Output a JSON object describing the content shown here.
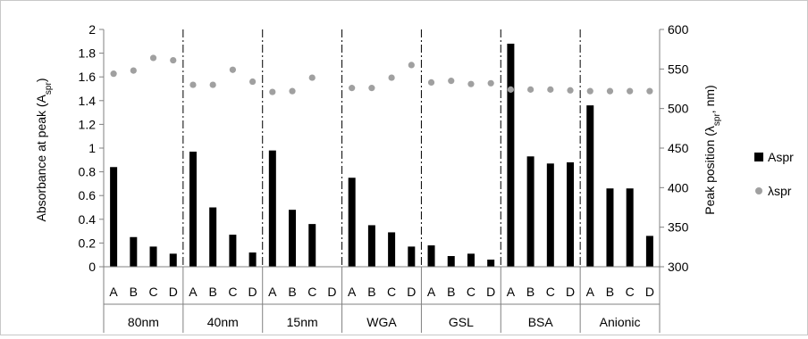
{
  "chart_data": {
    "type": "bar",
    "title": "",
    "groups": [
      "80nm",
      "40nm",
      "15nm",
      "WGA",
      "GSL",
      "BSA",
      "Anionic"
    ],
    "subcategories": [
      "A",
      "B",
      "C",
      "D"
    ],
    "ylabel_main": "Absorbance at peak (A",
    "ylabel_sub": "spr",
    "ylabel_end": ")",
    "y2label_main": "Peak position (λ",
    "y2label_sub": "spr",
    "y2label_end": ", nm)",
    "ylim": [
      0,
      2
    ],
    "y_ticks": [
      "0",
      "0.2",
      "0.4",
      "0.6",
      "0.8",
      "1",
      "1.2",
      "1.4",
      "1.6",
      "1.8",
      "2"
    ],
    "y2lim": [
      300,
      600
    ],
    "y2_ticks": [
      "300",
      "350",
      "400",
      "450",
      "500",
      "550",
      "600"
    ],
    "legend_position": "right",
    "series": [
      {
        "name": "Aspr",
        "type": "bar",
        "axis": "left",
        "color": "#000000",
        "values": [
          0.84,
          0.25,
          0.17,
          0.11,
          0.97,
          0.5,
          0.27,
          0.12,
          0.98,
          0.48,
          0.36,
          null,
          0.75,
          0.35,
          0.29,
          0.17,
          0.18,
          0.09,
          0.11,
          0.06,
          1.88,
          0.93,
          0.87,
          0.88,
          1.36,
          0.66,
          0.66,
          0.26
        ]
      },
      {
        "name": "λspr",
        "type": "scatter",
        "axis": "right",
        "color": "#a0a0a0",
        "values": [
          544,
          548,
          564,
          561,
          530,
          530,
          549,
          534,
          521,
          522,
          539,
          null,
          526,
          526,
          539,
          555,
          533,
          535,
          531,
          532,
          524,
          524,
          524,
          523,
          522,
          522,
          522,
          522
        ]
      }
    ]
  }
}
